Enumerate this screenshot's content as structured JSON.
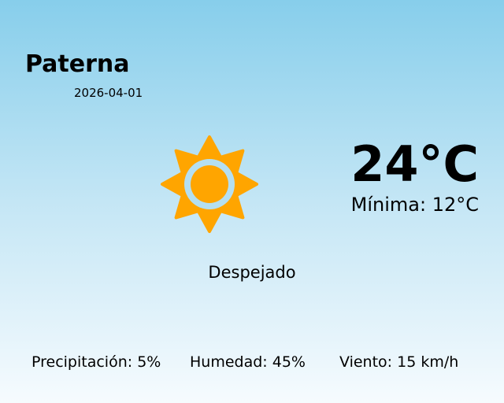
{
  "location": {
    "city": "Paterna",
    "date": "2026-04-01"
  },
  "current": {
    "temperature": "24°C",
    "minimum": "Mínima: 12°C",
    "condition": "Despejado",
    "icon": "sun-icon"
  },
  "stats": {
    "precipitation": "Precipitación: 5%",
    "humidity": "Humedad: 45%",
    "wind": "Viento: 15 km/h"
  },
  "colors": {
    "sun": "#ffa500",
    "sky_top": "#87ceeb",
    "sky_bottom": "#f6fbfe"
  }
}
